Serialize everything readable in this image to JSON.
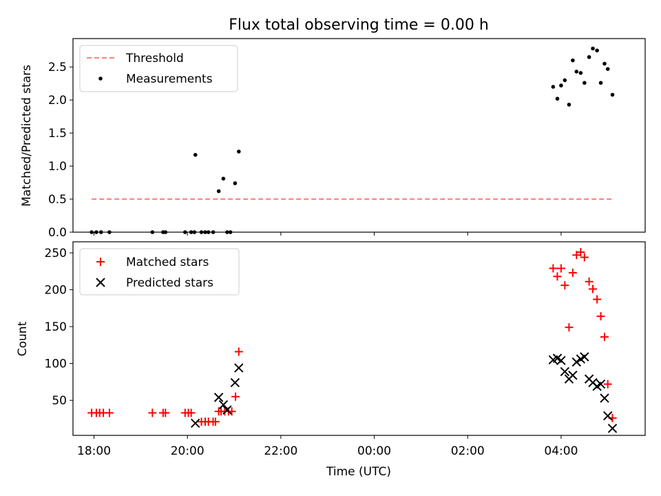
{
  "chart_data": [
    {
      "type": "scatter",
      "title": "Flux total observing time = 0.00 h",
      "xlabel": "",
      "ylabel": "Matched/Predicted stars",
      "ylim": [
        0,
        2.93
      ],
      "yticks": [
        "0.0",
        "0.5",
        "1.0",
        "1.5",
        "2.0",
        "2.5"
      ],
      "ytick_values": [
        0,
        0.5,
        1.0,
        1.5,
        2.0,
        2.5
      ],
      "legend_position": "upper-left",
      "threshold": {
        "name": "Threshold",
        "value": 0.5,
        "x": [
          17.95,
          29.1
        ],
        "color": "#ff7f7f",
        "style": "dashed"
      },
      "series": [
        {
          "name": "Measurements",
          "marker": "dot",
          "color": "#000000",
          "points": [
            [
              17.95,
              0
            ],
            [
              18.05,
              0
            ],
            [
              18.15,
              0
            ],
            [
              18.33,
              0
            ],
            [
              19.25,
              0
            ],
            [
              19.48,
              0
            ],
            [
              19.53,
              0
            ],
            [
              19.95,
              0
            ],
            [
              20.08,
              0
            ],
            [
              20.15,
              0
            ],
            [
              20.3,
              0
            ],
            [
              20.38,
              0
            ],
            [
              20.45,
              0
            ],
            [
              20.55,
              0
            ],
            [
              20.85,
              0
            ],
            [
              20.92,
              0
            ],
            [
              20.17,
              1.17
            ],
            [
              20.67,
              0.62
            ],
            [
              20.77,
              0.81
            ],
            [
              21.02,
              0.74
            ],
            [
              21.1,
              1.22
            ],
            [
              27.83,
              2.2
            ],
            [
              27.92,
              2.02
            ],
            [
              28.0,
              2.22
            ],
            [
              28.08,
              2.3
            ],
            [
              28.17,
              1.93
            ],
            [
              28.25,
              2.6
            ],
            [
              28.33,
              2.43
            ],
            [
              28.42,
              2.41
            ],
            [
              28.5,
              2.26
            ],
            [
              28.6,
              2.65
            ],
            [
              28.68,
              2.78
            ],
            [
              28.77,
              2.75
            ],
            [
              28.85,
              2.26
            ],
            [
              28.93,
              2.55
            ],
            [
              29.0,
              2.47
            ],
            [
              29.1,
              2.08
            ]
          ]
        }
      ]
    },
    {
      "type": "scatter",
      "title": "",
      "xlabel": "Time (UTC)",
      "ylabel": "Count",
      "ylim": [
        2.5,
        265
      ],
      "yticks": [
        "50",
        "100",
        "150",
        "200",
        "250"
      ],
      "ytick_values": [
        50,
        100,
        150,
        200,
        250
      ],
      "xlim": [
        17.55,
        29.8
      ],
      "xticks": [
        "18:00",
        "20:00",
        "22:00",
        "00:00",
        "02:00",
        "04:00"
      ],
      "xtick_values": [
        18,
        20,
        22,
        24,
        26,
        28
      ],
      "legend_position": "upper-left",
      "series": [
        {
          "name": "Matched stars",
          "marker": "plus",
          "color": "#ff0000",
          "points": [
            [
              17.95,
              33
            ],
            [
              18.05,
              33
            ],
            [
              18.12,
              33
            ],
            [
              18.2,
              33
            ],
            [
              18.33,
              33
            ],
            [
              19.25,
              33
            ],
            [
              19.48,
              33
            ],
            [
              19.53,
              33
            ],
            [
              19.95,
              33
            ],
            [
              20.02,
              33
            ],
            [
              20.08,
              33
            ],
            [
              20.3,
              21
            ],
            [
              20.38,
              21
            ],
            [
              20.45,
              21
            ],
            [
              20.55,
              21
            ],
            [
              20.6,
              21
            ],
            [
              20.67,
              35
            ],
            [
              20.72,
              35
            ],
            [
              20.8,
              35
            ],
            [
              20.88,
              35
            ],
            [
              20.95,
              35
            ],
            [
              21.03,
              55
            ],
            [
              21.1,
              116
            ],
            [
              27.83,
              229
            ],
            [
              27.92,
              218
            ],
            [
              28.0,
              229
            ],
            [
              28.08,
              206
            ],
            [
              28.17,
              149
            ],
            [
              28.25,
              223
            ],
            [
              28.33,
              247
            ],
            [
              28.42,
              251
            ],
            [
              28.5,
              244
            ],
            [
              28.6,
              211
            ],
            [
              28.68,
              201
            ],
            [
              28.77,
              187
            ],
            [
              28.85,
              164
            ],
            [
              28.93,
              136
            ],
            [
              29.0,
              72
            ],
            [
              29.1,
              26
            ]
          ]
        },
        {
          "name": "Predicted stars",
          "marker": "x",
          "color": "#000000",
          "points": [
            [
              20.17,
              19
            ],
            [
              20.67,
              54
            ],
            [
              20.77,
              44
            ],
            [
              20.85,
              37
            ],
            [
              21.02,
              74
            ],
            [
              21.1,
              94
            ],
            [
              27.83,
              105
            ],
            [
              27.92,
              107
            ],
            [
              28.0,
              104
            ],
            [
              28.08,
              89
            ],
            [
              28.17,
              79
            ],
            [
              28.25,
              84
            ],
            [
              28.33,
              102
            ],
            [
              28.42,
              106
            ],
            [
              28.5,
              109
            ],
            [
              28.6,
              79
            ],
            [
              28.68,
              74
            ],
            [
              28.77,
              69
            ],
            [
              28.85,
              72
            ],
            [
              28.93,
              53
            ],
            [
              29.0,
              29
            ],
            [
              29.1,
              12
            ]
          ]
        }
      ]
    }
  ]
}
